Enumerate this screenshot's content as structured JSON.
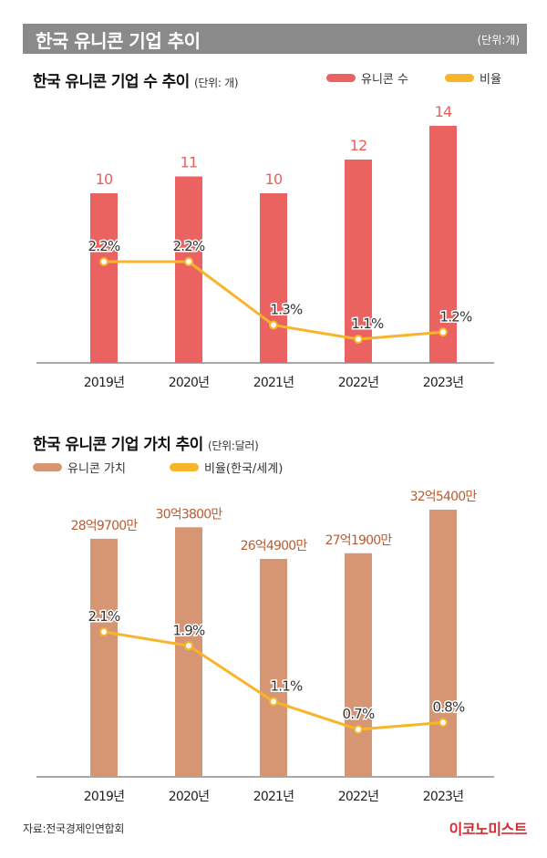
{
  "header": {
    "title": "한국 유니콘 기업 추이",
    "unit": "(단위:개)"
  },
  "footer": {
    "source": "자료:전국경제인연합회",
    "brand": "이코노미스트"
  },
  "colors": {
    "header_bg": "#8a8a8a",
    "count_bar": "#ea6360",
    "value_bar": "#d69673",
    "ratio_line": "#f8b52a",
    "count_label": "#e8605c",
    "value_label": "#b85c34",
    "brand": "#d32a2f"
  },
  "chart_data": [
    {
      "type": "bar",
      "title": "한국 유니콘 기업 수 추이",
      "unit": "(단위: 개)",
      "categories": [
        "2019년",
        "2020년",
        "2021년",
        "2022년",
        "2023년"
      ],
      "series": [
        {
          "name": "유니콘 수",
          "type": "bar",
          "values": [
            10,
            11,
            10,
            12,
            14
          ],
          "labels": [
            "10",
            "11",
            "10",
            "12",
            "14"
          ]
        },
        {
          "name": "비율",
          "type": "line",
          "values": [
            2.2,
            2.2,
            1.3,
            1.1,
            1.2
          ],
          "labels": [
            "2.2%",
            "2.2%",
            "1.3%",
            "1.1%",
            "1.2%"
          ]
        }
      ],
      "legend": [
        {
          "label": "유니콘 수"
        },
        {
          "label": "비율"
        }
      ],
      "legend_position": "top-right",
      "grid": false
    },
    {
      "type": "bar",
      "title": "한국 유니콘 기업 가치 추이",
      "unit": "(단위:달러)",
      "categories": [
        "2019년",
        "2020년",
        "2021년",
        "2022년",
        "2023년"
      ],
      "series": [
        {
          "name": "유니콘 가치",
          "type": "bar",
          "values": [
            2897000000,
            3038000000,
            2649000000,
            2719000000,
            3254000000
          ],
          "labels": [
            "28억9700만",
            "30억3800만",
            "26억4900만",
            "27억1900만",
            "32억5400만"
          ]
        },
        {
          "name": "비율(한국/세계)",
          "type": "line",
          "values": [
            2.1,
            1.9,
            1.1,
            0.7,
            0.8
          ],
          "labels": [
            "2.1%",
            "1.9%",
            "1.1%",
            "0.7%",
            "0.8%"
          ]
        }
      ],
      "legend": [
        {
          "label": "유니콘 가치"
        },
        {
          "label": "비율(한국/세계)"
        }
      ],
      "legend_position": "top-left",
      "grid": false
    }
  ]
}
